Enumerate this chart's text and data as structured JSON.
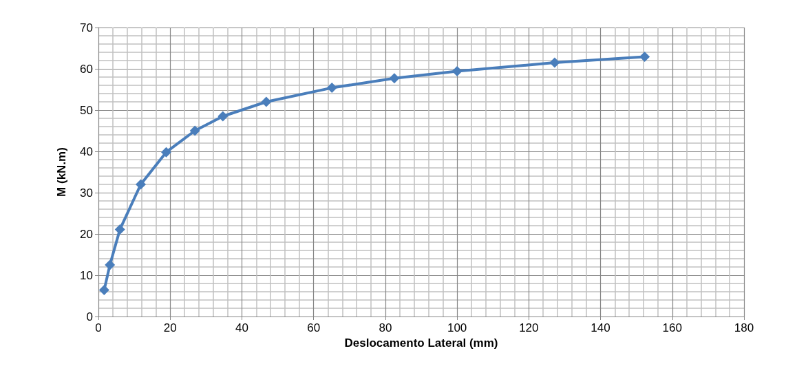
{
  "chart_data": {
    "type": "line",
    "xlabel": "Deslocamento Lateral (mm)",
    "ylabel": "M (kN.m)",
    "x": [
      1.6,
      3.2,
      6.0,
      11.8,
      18.9,
      26.9,
      34.7,
      46.8,
      65.1,
      82.5,
      100.0,
      127.2,
      152.3
    ],
    "series": [
      {
        "color": "#4a7ebb",
        "values": [
          6.4,
          12.5,
          21.1,
          32.0,
          39.8,
          45.0,
          48.5,
          52.0,
          55.4,
          57.7,
          59.4,
          61.5,
          62.9
        ]
      }
    ],
    "xlim": [
      0,
      180
    ],
    "xticks": [
      0,
      20,
      40,
      60,
      80,
      100,
      120,
      140,
      160,
      180
    ],
    "ylim": [
      0,
      70
    ],
    "yticks": [
      0,
      10,
      20,
      30,
      40,
      50,
      60,
      70
    ],
    "grid": true,
    "marker": "diamond",
    "line_style": "solid"
  }
}
